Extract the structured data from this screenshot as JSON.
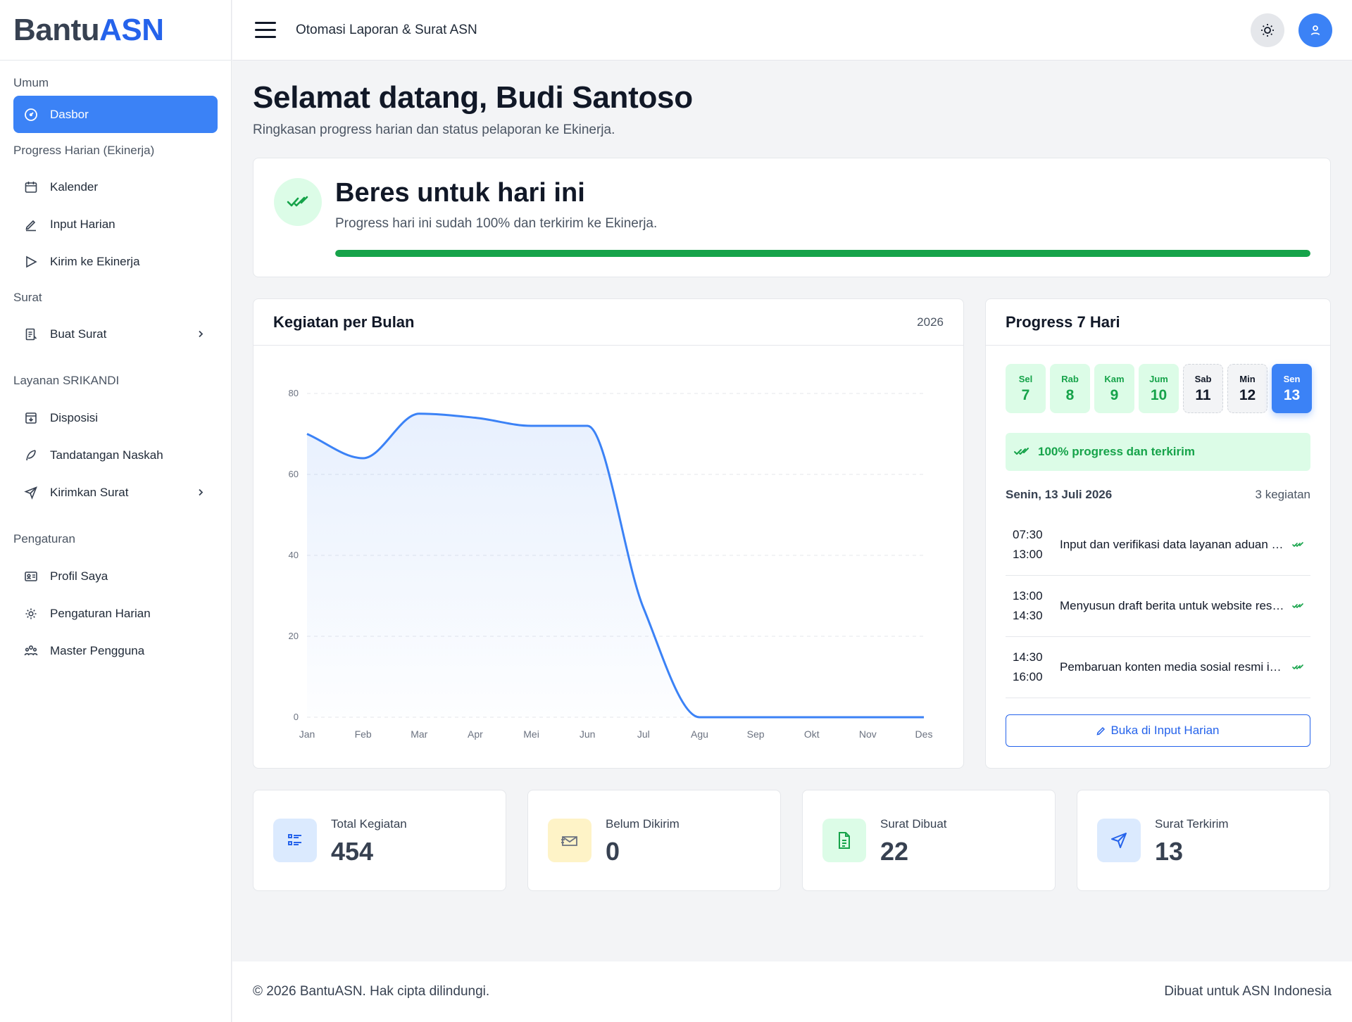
{
  "brand": {
    "part1": "Bantu",
    "part2": "ASN"
  },
  "topbar": {
    "title": "Otomasi Laporan & Surat ASN"
  },
  "sidebar": {
    "sections": {
      "umum": "Umum",
      "progress": "Progress Harian (Ekinerja)",
      "surat": "Surat",
      "layanan": "Layanan SRIKANDI",
      "pengaturan": "Pengaturan"
    },
    "items": {
      "dasbor": "Dasbor",
      "kalender": "Kalender",
      "input": "Input Harian",
      "kirim": "Kirim ke Ekinerja",
      "buat_surat": "Buat Surat",
      "disposisi": "Disposisi",
      "tandatangan": "Tandatangan Naskah",
      "kirimkan": "Kirimkan Surat",
      "profil": "Profil Saya",
      "pengaturan_harian": "Pengaturan Harian",
      "master": "Master Pengguna"
    }
  },
  "page": {
    "title": "Selamat datang, Budi Santoso",
    "subtitle": "Ringkasan progress harian dan status pelaporan ke Ekinerja."
  },
  "banner": {
    "title": "Beres untuk hari ini",
    "subtitle": "Progress hari ini sudah 100% dan terkirim ke Ekinerja.",
    "progress": 1.0,
    "color": "#16a34a"
  },
  "chart": {
    "title": "Kegiatan per Bulan",
    "year": "2026"
  },
  "chart_data": {
    "type": "area",
    "categories": [
      "Jan",
      "Feb",
      "Mar",
      "Apr",
      "Mei",
      "Jun",
      "Jul",
      "Agu",
      "Sep",
      "Okt",
      "Nov",
      "Des"
    ],
    "values": [
      70,
      64,
      75,
      74,
      72,
      72,
      27,
      0,
      0,
      0,
      0,
      0
    ],
    "ylim": [
      0,
      80
    ],
    "yticks": [
      0,
      20,
      40,
      60,
      80
    ],
    "grid": true,
    "color": "#3b82f6"
  },
  "week": {
    "title": "Progress 7 Hari",
    "days": [
      {
        "name": "Sel",
        "date": "7",
        "state": "done"
      },
      {
        "name": "Rab",
        "date": "8",
        "state": "done"
      },
      {
        "name": "Kam",
        "date": "9",
        "state": "done"
      },
      {
        "name": "Jum",
        "date": "10",
        "state": "done"
      },
      {
        "name": "Sab",
        "date": "11",
        "state": "empty"
      },
      {
        "name": "Min",
        "date": "12",
        "state": "empty"
      },
      {
        "name": "Sen",
        "date": "13",
        "state": "today"
      }
    ],
    "status": "100% progress dan terkirim",
    "date_label": "Senin, 13 Juli 2026",
    "count_label": "3 kegiatan",
    "activities": [
      {
        "start": "07:30",
        "end": "13:00",
        "desc": "Input dan verifikasi data layanan aduan masyarakat"
      },
      {
        "start": "13:00",
        "end": "14:30",
        "desc": "Menyusun draft berita untuk website resmi instansi"
      },
      {
        "start": "14:30",
        "end": "16:00",
        "desc": "Pembaruan konten media sosial resmi instansi"
      }
    ],
    "button": "Buka di Input Harian"
  },
  "stats": [
    {
      "label": "Total Kegiatan",
      "value": "454",
      "icon": "list-icon"
    },
    {
      "label": "Belum Dikirim",
      "value": "0",
      "icon": "mail-icon"
    },
    {
      "label": "Surat Dibuat",
      "value": "22",
      "icon": "document-icon"
    },
    {
      "label": "Surat Terkirim",
      "value": "13",
      "icon": "send-icon"
    }
  ],
  "footer": {
    "left": "© 2026 BantuASN. Hak cipta dilindungi.",
    "right": "Dibuat untuk ASN Indonesia"
  }
}
